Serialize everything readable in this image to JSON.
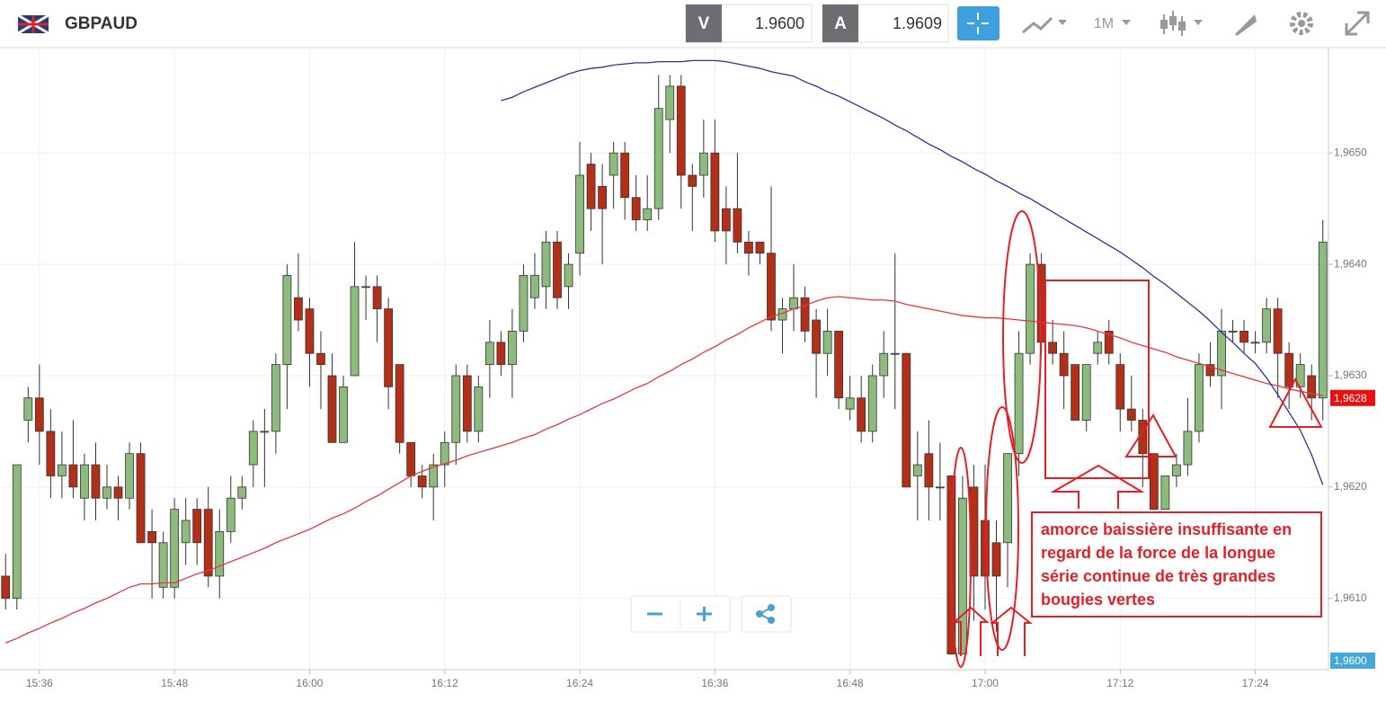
{
  "header": {
    "symbol": "GBPAUD",
    "bid_label": "V",
    "bid": "1.9600",
    "ask_label": "A",
    "ask": "1.9609",
    "timeframe": "1M"
  },
  "chart_data": {
    "type": "candlestick",
    "categories": [
      null,
      null,
      null,
      "15:36",
      null,
      null,
      null,
      null,
      null,
      null,
      null,
      null,
      null,
      null,
      null,
      "15:48",
      null,
      null,
      null,
      null,
      null,
      null,
      null,
      null,
      null,
      null,
      null,
      "16:00",
      null,
      null,
      null,
      null,
      null,
      null,
      null,
      null,
      null,
      null,
      null,
      "16:12",
      null,
      null,
      null,
      null,
      null,
      null,
      null,
      null,
      null,
      null,
      null,
      "16:24",
      null,
      null,
      null,
      null,
      null,
      null,
      null,
      null,
      null,
      null,
      null,
      "16:36",
      null,
      null,
      null,
      null,
      null,
      null,
      null,
      null,
      null,
      null,
      null,
      "16:48",
      null,
      null,
      null,
      null,
      null,
      null,
      null,
      null,
      null,
      null,
      null,
      "17:00",
      null,
      null,
      null,
      null,
      null,
      null,
      null,
      null,
      null,
      null,
      null,
      "17:12",
      null,
      null,
      null,
      null,
      null,
      null,
      null,
      null,
      null,
      null,
      null,
      "17:24",
      null,
      null,
      null,
      null,
      null,
      null
    ],
    "open": [
      1.9612,
      1.961,
      1.9626,
      1.9628,
      1.9625,
      1.9621,
      1.9622,
      1.9619,
      1.9622,
      1.9619,
      1.962,
      1.9619,
      1.9623,
      1.9616,
      1.9611,
      1.9611,
      1.9615,
      1.9618,
      1.9618,
      1.9612,
      1.9616,
      1.9619,
      1.9622,
      1.9625,
      1.9625,
      1.9631,
      1.9637,
      1.9636,
      1.9632,
      1.963,
      1.9624,
      1.963,
      1.9638,
      1.9638,
      1.9636,
      1.9631,
      1.9624,
      1.9621,
      1.962,
      1.9622,
      1.9624,
      1.963,
      1.9625,
      1.9631,
      1.9633,
      1.9631,
      1.9634,
      1.9637,
      1.9638,
      1.9642,
      1.9638,
      1.9641,
      1.9649,
      1.9647,
      1.9648,
      1.965,
      1.9646,
      1.9644,
      1.9645,
      1.9653,
      1.9656,
      1.9648,
      1.9648,
      1.965,
      1.9645,
      1.9645,
      1.9642,
      1.9642,
      1.9641,
      1.9635,
      1.9636,
      1.9637,
      1.9635,
      1.9632,
      1.9634,
      1.9627,
      1.9628,
      1.9625,
      1.963,
      1.9632,
      1.9632,
      1.9621,
      1.9623,
      1.962,
      1.9621,
      1.9605,
      1.962,
      1.9617,
      1.9615,
      1.9615,
      1.9623,
      1.9632,
      1.964,
      1.9633,
      1.9632,
      1.9631,
      1.9626,
      1.9632,
      1.9634,
      1.9631,
      1.9627,
      1.9626,
      1.9623,
      1.9618,
      1.9621,
      1.9622,
      1.9625,
      1.9631,
      1.963,
      1.9634,
      1.9634,
      1.9633,
      1.9633,
      1.9636,
      1.9632,
      1.9629,
      1.963,
      1.9628
    ],
    "high": [
      1.9614,
      1.9622,
      1.9629,
      1.9631,
      1.9627,
      1.9625,
      1.9626,
      1.9623,
      1.9624,
      1.9622,
      1.9621,
      1.9624,
      1.9624,
      1.9618,
      1.9616,
      1.9619,
      1.9619,
      1.9619,
      1.962,
      1.9618,
      1.9621,
      1.9621,
      1.9626,
      1.9627,
      1.9632,
      1.964,
      1.9641,
      1.9637,
      1.9634,
      1.9632,
      1.963,
      1.9642,
      1.9639,
      1.9639,
      1.9637,
      1.9631,
      1.9624,
      1.9622,
      1.9623,
      1.9625,
      1.9631,
      1.9631,
      1.963,
      1.9635,
      1.9634,
      1.9636,
      1.964,
      1.9641,
      1.9643,
      1.9643,
      1.9641,
      1.9651,
      1.965,
      1.9649,
      1.9651,
      1.9651,
      1.9648,
      1.9648,
      1.9657,
      1.9657,
      1.9657,
      1.9649,
      1.9653,
      1.9653,
      1.9647,
      1.965,
      1.9643,
      1.9642,
      1.9647,
      1.9637,
      1.964,
      1.9638,
      1.9636,
      1.9636,
      1.9634,
      1.963,
      1.963,
      1.9631,
      1.9634,
      1.9641,
      1.9632,
      1.9625,
      1.9626,
      1.9624,
      1.9621,
      1.9621,
      1.9622,
      1.9622,
      1.9617,
      1.9623,
      1.9634,
      1.9641,
      1.9641,
      1.9635,
      1.9634,
      1.9631,
      1.9631,
      1.9634,
      1.9635,
      1.9632,
      1.963,
      1.9627,
      1.9623,
      1.9621,
      1.9623,
      1.9628,
      1.9632,
      1.9633,
      1.9636,
      1.9635,
      1.9635,
      1.9634,
      1.9637,
      1.9637,
      1.9633,
      1.9632,
      1.9631,
      1.9644
    ],
    "low": [
      1.9609,
      1.9609,
      1.9624,
      1.9622,
      1.9619,
      1.9619,
      1.9619,
      1.9617,
      1.9617,
      1.9618,
      1.9617,
      1.9618,
      1.9615,
      1.961,
      1.961,
      1.961,
      1.9613,
      1.9613,
      1.9611,
      1.961,
      1.9615,
      1.9618,
      1.962,
      1.962,
      1.9623,
      1.9627,
      1.9634,
      1.9629,
      1.9627,
      1.9624,
      1.9624,
      1.963,
      1.9635,
      1.9633,
      1.9627,
      1.9623,
      1.962,
      1.9619,
      1.9617,
      1.962,
      1.9622,
      1.9624,
      1.9624,
      1.9628,
      1.963,
      1.9628,
      1.9633,
      1.9636,
      1.9636,
      1.9636,
      1.9636,
      1.9639,
      1.9643,
      1.964,
      1.9645,
      1.9644,
      1.9643,
      1.9643,
      1.9644,
      1.965,
      1.9645,
      1.9643,
      1.9646,
      1.9642,
      1.964,
      1.9641,
      1.9639,
      1.964,
      1.9634,
      1.9632,
      1.9634,
      1.9633,
      1.9628,
      1.963,
      1.9627,
      1.9626,
      1.9624,
      1.9624,
      1.9628,
      1.9627,
      1.962,
      1.9617,
      1.9617,
      1.9617,
      1.9605,
      1.9605,
      1.9608,
      1.9609,
      1.9607,
      1.9611,
      1.9621,
      1.9631,
      1.9632,
      1.9631,
      1.9627,
      1.9626,
      1.9625,
      1.9631,
      1.9631,
      1.9625,
      1.9625,
      1.962,
      1.9618,
      1.9618,
      1.962,
      1.9621,
      1.9624,
      1.9629,
      1.9627,
      1.9633,
      1.9632,
      1.9632,
      1.9632,
      1.9628,
      1.9627,
      1.9628,
      1.9626,
      1.9626
    ],
    "close": [
      1.961,
      1.9622,
      1.9628,
      1.9625,
      1.9621,
      1.9622,
      1.962,
      1.9622,
      1.9619,
      1.962,
      1.9619,
      1.9623,
      1.9615,
      1.9615,
      1.9615,
      1.9618,
      1.9617,
      1.9615,
      1.9612,
      1.9616,
      1.9619,
      1.962,
      1.9625,
      1.9625,
      1.9631,
      1.9639,
      1.9635,
      1.9632,
      1.9631,
      1.9624,
      1.9629,
      1.9638,
      1.9638,
      1.9636,
      1.9629,
      1.9624,
      1.9621,
      1.962,
      1.9622,
      1.9624,
      1.963,
      1.9625,
      1.9629,
      1.9633,
      1.9631,
      1.9634,
      1.9639,
      1.9639,
      1.9642,
      1.9637,
      1.964,
      1.9648,
      1.9645,
      1.9645,
      1.965,
      1.9646,
      1.9644,
      1.9645,
      1.9654,
      1.9656,
      1.9648,
      1.9647,
      1.965,
      1.9643,
      1.9643,
      1.9642,
      1.9641,
      1.9641,
      1.9635,
      1.9636,
      1.9637,
      1.9634,
      1.9632,
      1.9634,
      1.9628,
      1.9628,
      1.9625,
      1.963,
      1.9632,
      1.9632,
      1.962,
      1.9622,
      1.962,
      1.962,
      1.9605,
      1.9619,
      1.9612,
      1.9612,
      1.9612,
      1.9623,
      1.9632,
      1.964,
      1.9633,
      1.9632,
      1.963,
      1.9626,
      1.9631,
      1.9633,
      1.9632,
      1.9627,
      1.9626,
      1.9623,
      1.9618,
      1.9621,
      1.9622,
      1.9625,
      1.9631,
      1.963,
      1.9634,
      1.9634,
      1.9633,
      1.9633,
      1.9636,
      1.9632,
      1.9629,
      1.9631,
      1.9628,
      1.9642
    ],
    "up_color": "#8dbb7e",
    "down_color": "#b22f18",
    "flat_color": "#999999",
    "lines": [
      {
        "color": "#e23a3a",
        "values": [
          1.9606,
          1.96064,
          1.96069,
          1.96073,
          1.96078,
          1.96082,
          1.96087,
          1.96091,
          1.96096,
          1.961,
          1.96105,
          1.9611,
          1.96113,
          1.96113,
          1.96114,
          1.96114,
          1.96118,
          1.96122,
          1.96125,
          1.96129,
          1.96133,
          1.96137,
          1.96141,
          1.96145,
          1.9615,
          1.96154,
          1.96158,
          1.96162,
          1.96167,
          1.96172,
          1.96176,
          1.96181,
          1.96187,
          1.96192,
          1.96198,
          1.96204,
          1.9621,
          1.96214,
          1.96218,
          1.96221,
          1.96224,
          1.96228,
          1.96231,
          1.96234,
          1.96237,
          1.9624,
          1.96244,
          1.96247,
          1.96252,
          1.96256,
          1.96261,
          1.96265,
          1.9627,
          1.96275,
          1.96279,
          1.96284,
          1.96289,
          1.96293,
          1.96299,
          1.96304,
          1.9631,
          1.96315,
          1.96321,
          1.96326,
          1.96332,
          1.96337,
          1.96343,
          1.96348,
          1.96353,
          1.96356,
          1.9636,
          1.96363,
          1.96367,
          1.9637,
          1.96371,
          1.9637,
          1.96369,
          1.96368,
          1.96368,
          1.96367,
          1.96364,
          1.96362,
          1.9636,
          1.96358,
          1.96356,
          1.96354,
          1.96353,
          1.96352,
          1.96352,
          1.96351,
          1.9635,
          1.96349,
          1.96348,
          1.96347,
          1.96346,
          1.96345,
          1.96343,
          1.9634,
          1.96337,
          1.96334,
          1.9633,
          1.96327,
          1.96324,
          1.96321,
          1.96317,
          1.96314,
          1.96311,
          1.96308,
          1.96305,
          1.96302,
          1.96299,
          1.96296,
          1.96293,
          1.96291,
          1.96288,
          1.96286,
          1.96284,
          1.96282
        ]
      },
      {
        "color": "#2a3592",
        "values": [
          null,
          null,
          null,
          null,
          null,
          null,
          null,
          null,
          null,
          null,
          null,
          null,
          null,
          null,
          null,
          null,
          null,
          null,
          null,
          null,
          null,
          null,
          null,
          null,
          null,
          null,
          null,
          null,
          null,
          null,
          null,
          null,
          null,
          null,
          null,
          null,
          null,
          null,
          null,
          null,
          null,
          null,
          null,
          null,
          1.96547,
          1.9655,
          1.96555,
          1.96559,
          1.96563,
          1.96567,
          1.96571,
          1.96574,
          1.96576,
          1.96577,
          1.96579,
          1.9658,
          1.96581,
          1.96581,
          1.96582,
          1.96582,
          1.96582,
          1.96583,
          1.96583,
          1.96583,
          1.96582,
          1.9658,
          1.96578,
          1.96576,
          1.96573,
          1.96571,
          1.96569,
          1.96564,
          1.9656,
          1.96555,
          1.96551,
          1.96546,
          1.96541,
          1.96536,
          1.96531,
          1.96525,
          1.9652,
          1.96514,
          1.96508,
          1.96503,
          1.96497,
          1.96492,
          1.96486,
          1.96481,
          1.96475,
          1.9647,
          1.96464,
          1.96459,
          1.96453,
          1.96447,
          1.96441,
          1.96435,
          1.96429,
          1.96423,
          1.96417,
          1.96411,
          1.96404,
          1.96397,
          1.96389,
          1.96382,
          1.96374,
          1.96366,
          1.96358,
          1.96349,
          1.96339,
          1.9633,
          1.9632,
          1.96311,
          1.96298,
          1.96283,
          1.96267,
          1.96251,
          1.96229,
          1.96202
        ]
      }
    ],
    "ylim": [
      1.96036,
      1.96593
    ],
    "yticks": [
      {
        "value": 1.961,
        "label": "1,9610"
      },
      {
        "value": 1.962,
        "label": "1,9620"
      },
      {
        "value": 1.963,
        "label": "1,9630"
      },
      {
        "value": 1.964,
        "label": "1,9640"
      },
      {
        "value": 1.965,
        "label": "1,9650"
      }
    ],
    "grid": true,
    "price_markers": [
      {
        "value": 1.9628,
        "label": "1,9628",
        "color": "#e8110f"
      },
      {
        "value": 1.96,
        "label": "1,9600",
        "color": "#45a8d6"
      }
    ],
    "annotation": [
      "amorce baissière insuffisante en",
      "regard de la force de la longue",
      "série continue de  très  grandes",
      "bougies vertes"
    ]
  }
}
